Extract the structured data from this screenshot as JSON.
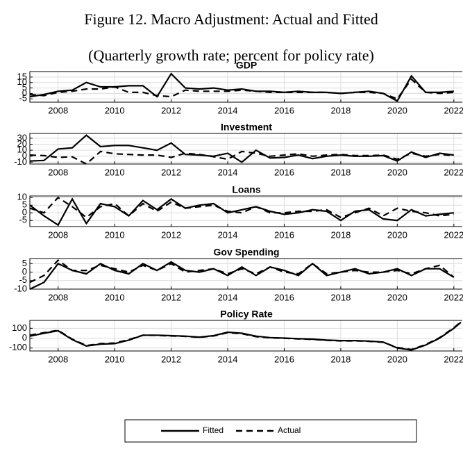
{
  "header": {
    "title": "Figure 12. Macro Adjustment: Actual and Fitted",
    "subtitle": "(Quarterly growth rate; percent for policy rate)"
  },
  "chart_data": [
    {
      "type": "line",
      "title": "GDP",
      "grid": true,
      "x": [
        2007,
        2007.5,
        2008,
        2008.5,
        2009,
        2009.5,
        2010,
        2010.5,
        2011,
        2011.5,
        2012,
        2012.5,
        2013,
        2013.5,
        2014,
        2014.5,
        2015,
        2015.5,
        2016,
        2016.5,
        2017,
        2017.5,
        2018,
        2018.5,
        2019,
        2019.5,
        2020,
        2020.5,
        2021,
        2021.5,
        2022
      ],
      "xlim": [
        2007,
        2022.3
      ],
      "xticks": [
        2008,
        2010,
        2012,
        2014,
        2016,
        2018,
        2020,
        2022
      ],
      "ylim": [
        -8,
        20
      ],
      "yticks": [
        -5,
        0,
        5,
        10,
        15
      ],
      "series": [
        {
          "name": "Fitted",
          "color": "#000000",
          "line_style": "solid",
          "values": [
            -3,
            -1,
            2,
            3,
            10,
            6,
            6,
            7,
            7,
            -3,
            18,
            5,
            4,
            5,
            3,
            4,
            2,
            2,
            1,
            2,
            1,
            1,
            0,
            1,
            2,
            0,
            -7,
            16,
            1,
            1,
            2
          ]
        },
        {
          "name": "Actual",
          "color": "#000000",
          "line_style": "dashed",
          "values": [
            -1,
            -2,
            1,
            2,
            4,
            4,
            6,
            1,
            1,
            -2,
            -3,
            3,
            2,
            2,
            2,
            3,
            2,
            1,
            1,
            1,
            1,
            1,
            0,
            1,
            1,
            0,
            -5,
            13,
            1,
            0,
            1
          ]
        }
      ]
    },
    {
      "type": "line",
      "title": "Investment",
      "grid": true,
      "x": [
        2007,
        2007.5,
        2008,
        2008.5,
        2009,
        2009.5,
        2010,
        2010.5,
        2011,
        2011.5,
        2012,
        2012.5,
        2013,
        2013.5,
        2014,
        2014.5,
        2015,
        2015.5,
        2016,
        2016.5,
        2017,
        2017.5,
        2018,
        2018.5,
        2019,
        2019.5,
        2020,
        2020.5,
        2021,
        2021.5,
        2022
      ],
      "xlim": [
        2007,
        2022.3
      ],
      "xticks": [
        2008,
        2010,
        2012,
        2014,
        2016,
        2018,
        2020,
        2022
      ],
      "ylim": [
        -13,
        38
      ],
      "yticks": [
        -10,
        0,
        10,
        20,
        30
      ],
      "series": [
        {
          "name": "Fitted",
          "color": "#000000",
          "line_style": "solid",
          "values": [
            -8,
            -7,
            12,
            14,
            35,
            16,
            18,
            18,
            14,
            10,
            22,
            3,
            2,
            0,
            5,
            -10,
            10,
            -3,
            -2,
            2,
            -4,
            0,
            2,
            0,
            0,
            1,
            -8,
            7,
            -2,
            5,
            2
          ]
        },
        {
          "name": "Actual",
          "color": "#000000",
          "line_style": "dashed",
          "values": [
            2,
            1,
            -2,
            -1,
            -13,
            8,
            4,
            3,
            2,
            2,
            -2,
            5,
            3,
            -1,
            -5,
            8,
            5,
            0,
            2,
            4,
            0,
            2,
            3,
            1,
            1,
            2,
            -5,
            5,
            0,
            3,
            1
          ]
        }
      ]
    },
    {
      "type": "line",
      "title": "Loans",
      "grid": true,
      "x": [
        2007,
        2007.5,
        2008,
        2008.5,
        2009,
        2009.5,
        2010,
        2010.5,
        2011,
        2011.5,
        2012,
        2012.5,
        2013,
        2013.5,
        2014,
        2014.5,
        2015,
        2015.5,
        2016,
        2016.5,
        2017,
        2017.5,
        2018,
        2018.5,
        2019,
        2019.5,
        2020,
        2020.5,
        2021,
        2021.5,
        2022
      ],
      "xlim": [
        2007,
        2022.3
      ],
      "xticks": [
        2008,
        2010,
        2012,
        2014,
        2016,
        2018,
        2020,
        2022
      ],
      "ylim": [
        -9,
        11
      ],
      "yticks": [
        -5,
        0,
        5,
        10
      ],
      "series": [
        {
          "name": "Fitted",
          "color": "#000000",
          "line_style": "solid",
          "values": [
            5,
            -2,
            -8,
            9,
            -7,
            6,
            4,
            -2,
            8,
            2,
            9,
            3,
            5,
            6,
            0,
            2,
            4,
            1,
            -1,
            0,
            2,
            1,
            -5,
            1,
            2,
            -4,
            -5,
            2,
            -2,
            -1,
            0
          ]
        },
        {
          "name": "Actual",
          "color": "#000000",
          "line_style": "dashed",
          "values": [
            3,
            0,
            10,
            4,
            -3,
            4,
            6,
            -2,
            6,
            1,
            7,
            3,
            4,
            5,
            1,
            0,
            4,
            0,
            0,
            1,
            1,
            2,
            -3,
            0,
            3,
            -2,
            3,
            1,
            0,
            -2,
            -1
          ]
        }
      ]
    },
    {
      "type": "line",
      "title": "Gov Spending",
      "grid": true,
      "x": [
        2007,
        2007.5,
        2008,
        2008.5,
        2009,
        2009.5,
        2010,
        2010.5,
        2011,
        2011.5,
        2012,
        2012.5,
        2013,
        2013.5,
        2014,
        2014.5,
        2015,
        2015.5,
        2016,
        2016.5,
        2017,
        2017.5,
        2018,
        2018.5,
        2019,
        2019.5,
        2020,
        2020.5,
        2021,
        2021.5,
        2022
      ],
      "xlim": [
        2007,
        2022.3
      ],
      "xticks": [
        2008,
        2010,
        2012,
        2014,
        2016,
        2018,
        2020,
        2022
      ],
      "ylim": [
        -10,
        8
      ],
      "yticks": [
        -10,
        -5,
        0,
        5
      ],
      "series": [
        {
          "name": "Fitted",
          "color": "#000000",
          "line_style": "solid",
          "values": [
            -10,
            -6,
            5,
            1,
            -1,
            5,
            1,
            -1,
            5,
            1,
            6,
            1,
            0,
            2,
            -2,
            3,
            -2,
            3,
            1,
            -2,
            5,
            -2,
            0,
            2,
            -1,
            0,
            2,
            -2,
            2,
            2,
            -3
          ]
        },
        {
          "name": "Actual",
          "color": "#000000",
          "line_style": "dashed",
          "values": [
            -6,
            -2,
            7,
            1,
            1,
            4,
            2,
            0,
            4,
            1,
            5,
            0,
            1,
            2,
            -1,
            2,
            -1,
            3,
            0,
            -1,
            5,
            -1,
            0,
            1,
            0,
            0,
            1,
            -1,
            2,
            4,
            -3
          ]
        }
      ]
    },
    {
      "type": "line",
      "title": "Policy Rate",
      "grid": true,
      "x": [
        2007,
        2007.5,
        2008,
        2008.5,
        2009,
        2009.5,
        2010,
        2010.5,
        2011,
        2011.5,
        2012,
        2012.5,
        2013,
        2013.5,
        2014,
        2014.5,
        2015,
        2015.5,
        2016,
        2016.5,
        2017,
        2017.5,
        2018,
        2018.5,
        2019,
        2019.5,
        2020,
        2020.5,
        2021,
        2021.5,
        2022,
        2022.25
      ],
      "xlim": [
        2007,
        2022.3
      ],
      "xticks": [
        2008,
        2010,
        2012,
        2014,
        2016,
        2018,
        2020,
        2022
      ],
      "ylim": [
        -130,
        180
      ],
      "yticks": [
        -100,
        0,
        100
      ],
      "series": [
        {
          "name": "Fitted",
          "color": "#000000",
          "line_style": "solid",
          "values": [
            20,
            50,
            75,
            -15,
            -80,
            -60,
            -55,
            -20,
            30,
            30,
            25,
            20,
            10,
            25,
            60,
            50,
            20,
            5,
            0,
            -5,
            -10,
            -20,
            -25,
            -25,
            -30,
            -40,
            -100,
            -120,
            -70,
            0,
            100,
            160
          ]
        },
        {
          "name": "Actual",
          "color": "#000000",
          "line_style": "dashed",
          "values": [
            30,
            55,
            80,
            -10,
            -75,
            -55,
            -50,
            -15,
            30,
            28,
            22,
            18,
            8,
            22,
            55,
            45,
            15,
            3,
            -2,
            -8,
            -12,
            -22,
            -28,
            -28,
            -32,
            -42,
            -95,
            -115,
            -65,
            5,
            105,
            165
          ]
        }
      ]
    }
  ]
}
